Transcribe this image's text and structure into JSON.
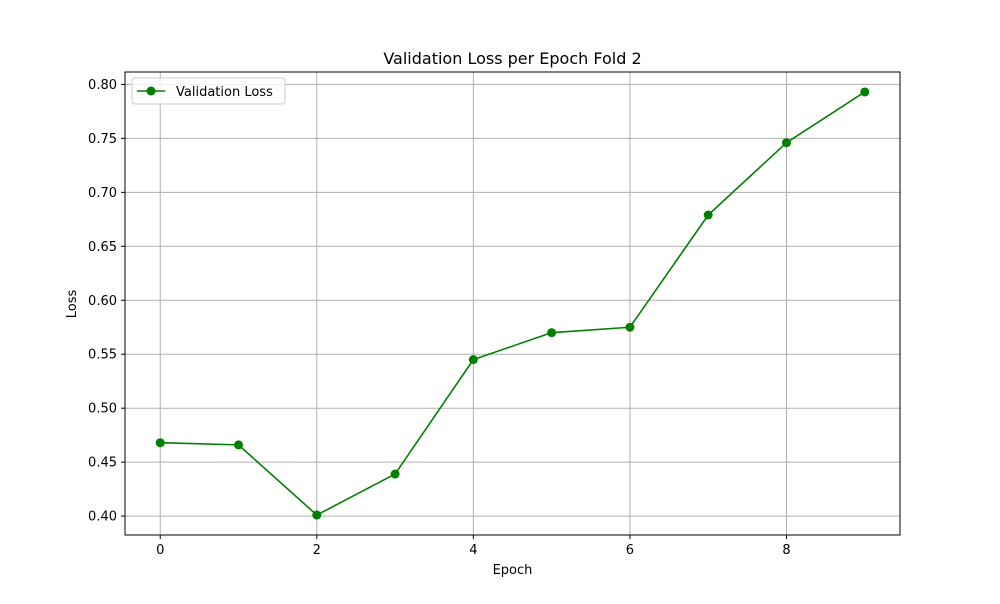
{
  "chart_data": {
    "type": "line",
    "title": "Validation Loss per Epoch Fold 2",
    "xlabel": "Epoch",
    "ylabel": "Loss",
    "xlim": [
      -0.45,
      9.45
    ],
    "ylim": [
      0.3825,
      0.8115
    ],
    "xticks": [
      0,
      2,
      4,
      6,
      8
    ],
    "xtick_labels": [
      "0",
      "2",
      "4",
      "6",
      "8"
    ],
    "yticks": [
      0.4,
      0.45,
      0.5,
      0.55,
      0.6,
      0.65,
      0.7,
      0.75,
      0.8
    ],
    "ytick_labels": [
      "0.40",
      "0.45",
      "0.50",
      "0.55",
      "0.60",
      "0.65",
      "0.70",
      "0.75",
      "0.80"
    ],
    "grid": true,
    "legend_location": "upper-left",
    "series": [
      {
        "name": "Validation Loss",
        "color": "#008000",
        "marker": "circle",
        "x": [
          0,
          1,
          2,
          3,
          4,
          5,
          6,
          7,
          8,
          9
        ],
        "y": [
          0.468,
          0.466,
          0.401,
          0.439,
          0.545,
          0.57,
          0.575,
          0.679,
          0.746,
          0.793
        ]
      }
    ]
  }
}
